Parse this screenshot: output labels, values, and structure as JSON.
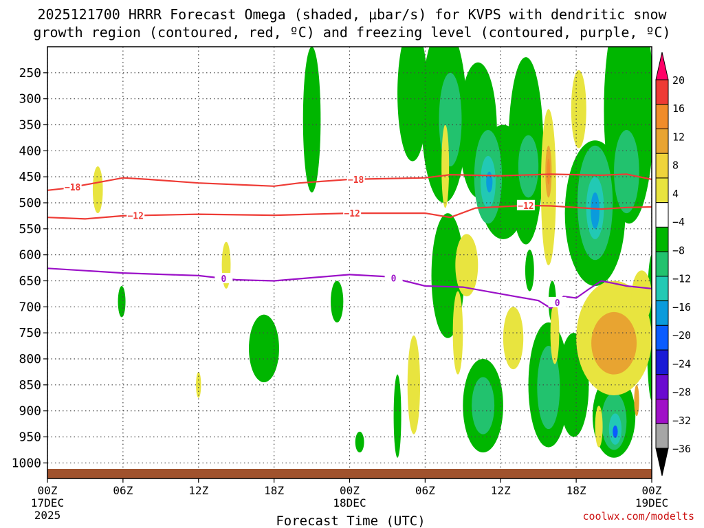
{
  "chart_data": {
    "type": "time-height",
    "title_line1": "2025121700 HRRR Forecast Omega (shaded, μbar/s) for KVPS with dendritic snow",
    "title_line2": "growth region (contoured, red, ºC) and freezing level (contoured, purple, ºC)",
    "xlabel": "Forecast Time (UTC)",
    "source": "coolwx.com/modelts",
    "x_range_hours": [
      0,
      48
    ],
    "y_range_hpa": [
      200,
      1030
    ],
    "x_ticks": [
      {
        "hour": 0,
        "label": "00Z",
        "sub1": "17DEC",
        "sub2": "2025"
      },
      {
        "hour": 6,
        "label": "06Z"
      },
      {
        "hour": 12,
        "label": "12Z"
      },
      {
        "hour": 18,
        "label": "18Z"
      },
      {
        "hour": 24,
        "label": "00Z",
        "sub1": "18DEC"
      },
      {
        "hour": 30,
        "label": "06Z"
      },
      {
        "hour": 36,
        "label": "12Z"
      },
      {
        "hour": 42,
        "label": "18Z"
      },
      {
        "hour": 48,
        "label": "00Z",
        "sub1": "19DEC"
      }
    ],
    "y_ticks": [
      250,
      300,
      350,
      400,
      450,
      500,
      550,
      600,
      650,
      700,
      750,
      800,
      850,
      900,
      950,
      1000
    ],
    "colorbar": {
      "labels": [
        "20",
        "16",
        "12",
        "8",
        "4",
        "−4",
        "−8",
        "−12",
        "−16",
        "−20",
        "−24",
        "−28",
        "−32",
        "−36"
      ],
      "colors": [
        "#ff0066",
        "#ee3b35",
        "#f08c2a",
        "#e8a431",
        "#efd43b",
        "#e8e43f",
        "#ffffff",
        "#00b600",
        "#22c26e",
        "#22c9b4",
        "#0a9bdc",
        "#0a5cff",
        "#1a1ad6",
        "#6a0ad0",
        "#a010c8",
        "#a6a6a6",
        "#000000"
      ]
    },
    "series": [
      {
        "name": "-18",
        "kind": "dendritic",
        "color": "#ee3b35",
        "points": [
          [
            0,
            476
          ],
          [
            1.5,
            472
          ],
          [
            6,
            452
          ],
          [
            8,
            455
          ],
          [
            12,
            462
          ],
          [
            18,
            468
          ],
          [
            20,
            462
          ],
          [
            24,
            455
          ],
          [
            30,
            452
          ],
          [
            32,
            446
          ],
          [
            36,
            448
          ],
          [
            40,
            445
          ],
          [
            44,
            447
          ],
          [
            46,
            445
          ],
          [
            48,
            455
          ]
        ]
      },
      {
        "name": "-12",
        "kind": "dendritic",
        "color": "#ee3b35",
        "points": [
          [
            0,
            528
          ],
          [
            3,
            531
          ],
          [
            6,
            525
          ],
          [
            12,
            522
          ],
          [
            18,
            524
          ],
          [
            24,
            520
          ],
          [
            30,
            520
          ],
          [
            32,
            528
          ],
          [
            34,
            510
          ],
          [
            38,
            505
          ],
          [
            40,
            506
          ],
          [
            44,
            512
          ],
          [
            46,
            509
          ],
          [
            48,
            508
          ]
        ]
      },
      {
        "name": "0",
        "kind": "freezing",
        "color": "#9b10c8",
        "points": [
          [
            0,
            626
          ],
          [
            6,
            635
          ],
          [
            12,
            640
          ],
          [
            15,
            648
          ],
          [
            18,
            650
          ],
          [
            24,
            638
          ],
          [
            27,
            642
          ],
          [
            30,
            660
          ],
          [
            33,
            662
          ],
          [
            36,
            675
          ],
          [
            39,
            688
          ],
          [
            40,
            703
          ],
          [
            41,
            680
          ],
          [
            42,
            683
          ],
          [
            43,
            666
          ],
          [
            44,
            650
          ],
          [
            46,
            660
          ],
          [
            48,
            665
          ]
        ]
      }
    ],
    "omega_areas": [
      {
        "level": "-4",
        "color": "#00b600",
        "cx": 21.0,
        "cy": 340,
        "rx": 0.7,
        "ry": 140
      },
      {
        "level": "-4",
        "color": "#00b600",
        "cx": 29.0,
        "cy": 290,
        "rx": 1.2,
        "ry": 130
      },
      {
        "level": "-4",
        "color": "#00b600",
        "cx": 31.5,
        "cy": 330,
        "rx": 1.8,
        "ry": 170
      },
      {
        "level": "-4",
        "color": "#00b600",
        "cx": 34.2,
        "cy": 360,
        "rx": 1.5,
        "ry": 130
      },
      {
        "level": "-4",
        "color": "#00b600",
        "cx": 36.2,
        "cy": 460,
        "rx": 2.0,
        "ry": 110
      },
      {
        "level": "-4",
        "color": "#00b600",
        "cx": 38.0,
        "cy": 400,
        "rx": 1.4,
        "ry": 180
      },
      {
        "level": "-4",
        "color": "#00b600",
        "cx": 43.5,
        "cy": 520,
        "rx": 2.4,
        "ry": 140
      },
      {
        "level": "-4",
        "color": "#00b600",
        "cx": 46.2,
        "cy": 320,
        "rx": 2.0,
        "ry": 220
      },
      {
        "level": "-4",
        "color": "#00b600",
        "cx": 31.8,
        "cy": 640,
        "rx": 1.3,
        "ry": 120
      },
      {
        "level": "-4",
        "color": "#00b600",
        "cx": 39.8,
        "cy": 850,
        "rx": 1.6,
        "ry": 120
      },
      {
        "level": "-4",
        "color": "#00b600",
        "cx": 41.8,
        "cy": 850,
        "rx": 1.2,
        "ry": 100
      },
      {
        "level": "-4",
        "color": "#00b600",
        "cx": 34.6,
        "cy": 890,
        "rx": 1.6,
        "ry": 90
      },
      {
        "level": "-4",
        "color": "#00b600",
        "cx": 45.0,
        "cy": 910,
        "rx": 1.7,
        "ry": 80
      },
      {
        "level": "-4",
        "color": "#00b600",
        "cx": 17.2,
        "cy": 780,
        "rx": 1.2,
        "ry": 65
      },
      {
        "level": "-4",
        "color": "#00b600",
        "cx": 5.9,
        "cy": 690,
        "rx": 0.3,
        "ry": 30
      },
      {
        "level": "-4",
        "color": "#00b600",
        "cx": 24.8,
        "cy": 960,
        "rx": 0.35,
        "ry": 20
      },
      {
        "level": "-4",
        "color": "#00b600",
        "cx": 38.3,
        "cy": 630,
        "rx": 0.35,
        "ry": 40
      },
      {
        "level": "-4",
        "color": "#00b600",
        "cx": 40.1,
        "cy": 690,
        "rx": 0.3,
        "ry": 40
      },
      {
        "level": "-4",
        "color": "#00b600",
        "cx": 27.8,
        "cy": 910,
        "rx": 0.3,
        "ry": 80
      },
      {
        "level": "-4",
        "color": "#00b600",
        "cx": 23.0,
        "cy": 690,
        "rx": 0.5,
        "ry": 40
      },
      {
        "level": "-4",
        "color": "#00b600",
        "cx": 48.0,
        "cy": 740,
        "rx": 0.4,
        "ry": 140
      },
      {
        "level": "-8",
        "color": "#22c26e",
        "cx": 32.0,
        "cy": 340,
        "rx": 0.9,
        "ry": 90
      },
      {
        "level": "-8",
        "color": "#22c26e",
        "cx": 35.0,
        "cy": 450,
        "rx": 1.1,
        "ry": 90
      },
      {
        "level": "-8",
        "color": "#22c26e",
        "cx": 38.2,
        "cy": 430,
        "rx": 0.8,
        "ry": 60
      },
      {
        "level": "-8",
        "color": "#22c26e",
        "cx": 43.5,
        "cy": 500,
        "rx": 1.4,
        "ry": 110
      },
      {
        "level": "-8",
        "color": "#22c26e",
        "cx": 46.0,
        "cy": 440,
        "rx": 1.0,
        "ry": 80
      },
      {
        "level": "-8",
        "color": "#22c26e",
        "cx": 39.8,
        "cy": 855,
        "rx": 0.9,
        "ry": 80
      },
      {
        "level": "-8",
        "color": "#22c26e",
        "cx": 34.6,
        "cy": 890,
        "rx": 0.9,
        "ry": 55
      },
      {
        "level": "-8",
        "color": "#22c26e",
        "cx": 45.0,
        "cy": 920,
        "rx": 1.0,
        "ry": 55
      },
      {
        "level": "-12",
        "color": "#22c9b4",
        "cx": 35.0,
        "cy": 460,
        "rx": 0.6,
        "ry": 50
      },
      {
        "level": "-12",
        "color": "#22c9b4",
        "cx": 43.5,
        "cy": 510,
        "rx": 0.7,
        "ry": 60
      },
      {
        "level": "-12",
        "color": "#22c9b4",
        "cx": 45.1,
        "cy": 935,
        "rx": 0.5,
        "ry": 30
      },
      {
        "level": "-16",
        "color": "#0a9bdc",
        "cx": 43.5,
        "cy": 515,
        "rx": 0.35,
        "ry": 35
      },
      {
        "level": "-16",
        "color": "#0a9bdc",
        "cx": 35.1,
        "cy": 460,
        "rx": 0.25,
        "ry": 20
      },
      {
        "level": "-20",
        "color": "#0a5cff",
        "cx": 45.1,
        "cy": 940,
        "rx": 0.2,
        "ry": 12
      },
      {
        "level": "4",
        "color": "#e8e43f",
        "cx": 4.0,
        "cy": 475,
        "rx": 0.4,
        "ry": 45
      },
      {
        "level": "4",
        "color": "#e8e43f",
        "cx": 14.2,
        "cy": 620,
        "rx": 0.35,
        "ry": 45
      },
      {
        "level": "4",
        "color": "#e8e43f",
        "cx": 12.0,
        "cy": 850,
        "rx": 0.2,
        "ry": 25
      },
      {
        "level": "4",
        "color": "#e8e43f",
        "cx": 29.1,
        "cy": 850,
        "rx": 0.5,
        "ry": 95
      },
      {
        "level": "4",
        "color": "#e8e43f",
        "cx": 33.3,
        "cy": 620,
        "rx": 0.9,
        "ry": 60
      },
      {
        "level": "4",
        "color": "#e8e43f",
        "cx": 32.6,
        "cy": 750,
        "rx": 0.4,
        "ry": 80
      },
      {
        "level": "4",
        "color": "#e8e43f",
        "cx": 37.0,
        "cy": 760,
        "rx": 0.8,
        "ry": 60
      },
      {
        "level": "4",
        "color": "#e8e43f",
        "cx": 39.8,
        "cy": 470,
        "rx": 0.6,
        "ry": 150
      },
      {
        "level": "4",
        "color": "#e8e43f",
        "cx": 42.2,
        "cy": 320,
        "rx": 0.6,
        "ry": 75
      },
      {
        "level": "4",
        "color": "#e8e43f",
        "cx": 40.3,
        "cy": 750,
        "rx": 0.35,
        "ry": 60
      },
      {
        "level": "4",
        "color": "#e8e43f",
        "cx": 45.0,
        "cy": 760,
        "rx": 3.0,
        "ry": 110
      },
      {
        "level": "4",
        "color": "#e8e43f",
        "cx": 47.2,
        "cy": 680,
        "rx": 0.8,
        "ry": 50
      },
      {
        "level": "4",
        "color": "#e8e43f",
        "cx": 43.8,
        "cy": 930,
        "rx": 0.3,
        "ry": 40
      },
      {
        "level": "4",
        "color": "#e8e43f",
        "cx": 31.6,
        "cy": 430,
        "rx": 0.3,
        "ry": 80
      },
      {
        "level": "8",
        "color": "#e8a431",
        "cx": 45.0,
        "cy": 770,
        "rx": 1.8,
        "ry": 60
      },
      {
        "level": "8",
        "color": "#e8a431",
        "cx": 39.8,
        "cy": 440,
        "rx": 0.25,
        "ry": 50
      },
      {
        "level": "8",
        "color": "#e8a431",
        "cx": 46.8,
        "cy": 880,
        "rx": 0.2,
        "ry": 30
      },
      {
        "level": "12",
        "color": "#f08c2a",
        "cx": 39.8,
        "cy": 440,
        "rx": 0.12,
        "ry": 25
      }
    ]
  }
}
